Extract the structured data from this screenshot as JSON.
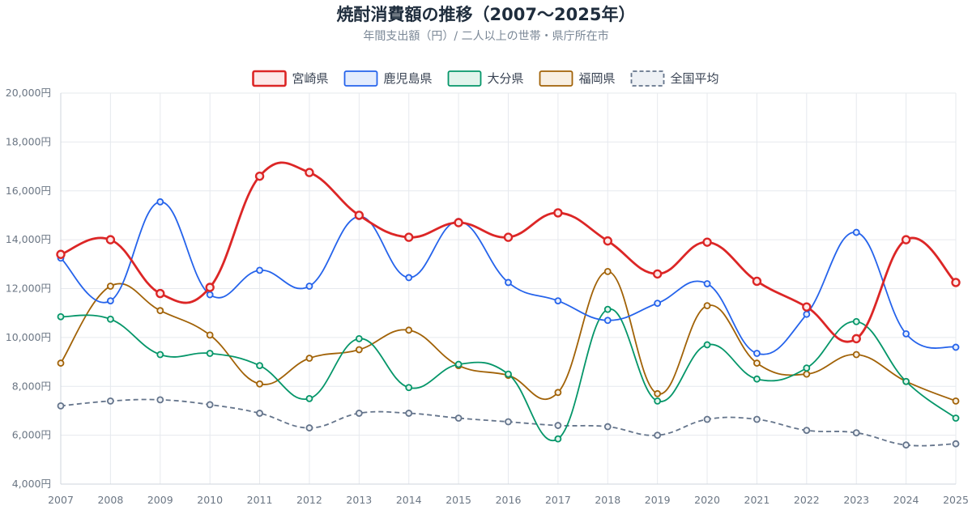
{
  "chart_data": {
    "type": "line",
    "title": "焼酎消費額の推移（2007〜2025年）",
    "subtitle": "年間支出額（円）/ 二人以上の世帯・県庁所在市",
    "categories": [
      "2007",
      "2008",
      "2009",
      "2010",
      "2011",
      "2012",
      "2013",
      "2014",
      "2015",
      "2016",
      "2017",
      "2018",
      "2019",
      "2020",
      "2021",
      "2022",
      "2023",
      "2024",
      "2025"
    ],
    "ylim": [
      4000,
      20000
    ],
    "y_ticks": [
      4000,
      6000,
      8000,
      10000,
      12000,
      14000,
      16000,
      18000,
      20000
    ],
    "y_tick_labels": [
      "4,000円",
      "6,000円",
      "8,000円",
      "10,000円",
      "12,000円",
      "14,000円",
      "16,000円",
      "18,000円",
      "20,000円"
    ],
    "grid": true,
    "legend_position": "top-center",
    "series": [
      {
        "name": "宮崎県",
        "color": "#dc2626",
        "fill": "#fde8e8",
        "dashed": false,
        "bold": true,
        "values": [
          13400,
          14000,
          11800,
          12050,
          16600,
          16750,
          15000,
          14100,
          14700,
          14100,
          15100,
          13950,
          12600,
          13900,
          12300,
          11250,
          9950,
          14000,
          12250
        ]
      },
      {
        "name": "鹿児島県",
        "color": "#2563eb",
        "fill": "#e3ecfd",
        "dashed": false,
        "bold": false,
        "values": [
          13250,
          11500,
          15550,
          11750,
          12750,
          12100,
          14950,
          12450,
          14750,
          12250,
          11500,
          10700,
          11400,
          12200,
          9350,
          10950,
          14300,
          10150,
          9600
        ]
      },
      {
        "name": "大分県",
        "color": "#059669",
        "fill": "#e1f4ec",
        "dashed": false,
        "bold": false,
        "values": [
          10850,
          10750,
          9300,
          9350,
          8850,
          7500,
          9950,
          7950,
          8900,
          8500,
          5850,
          11150,
          7400,
          9700,
          8300,
          8750,
          10650,
          8200,
          6700
        ]
      },
      {
        "name": "福岡県",
        "color": "#a16207",
        "fill": "#f8efe2",
        "dashed": false,
        "bold": false,
        "values": [
          8950,
          12100,
          11100,
          10100,
          8100,
          9150,
          9500,
          10300,
          8850,
          8450,
          7750,
          12700,
          7700,
          11300,
          8950,
          8500,
          9300,
          8200,
          7400
        ]
      },
      {
        "name": "全国平均",
        "color": "#64748b",
        "fill": "#eef1f5",
        "dashed": true,
        "bold": false,
        "values": [
          7200,
          7400,
          7450,
          7250,
          6900,
          6300,
          6900,
          6900,
          6700,
          6550,
          6400,
          6350,
          6000,
          6650,
          6650,
          6200,
          6100,
          5600,
          5650
        ]
      }
    ]
  }
}
